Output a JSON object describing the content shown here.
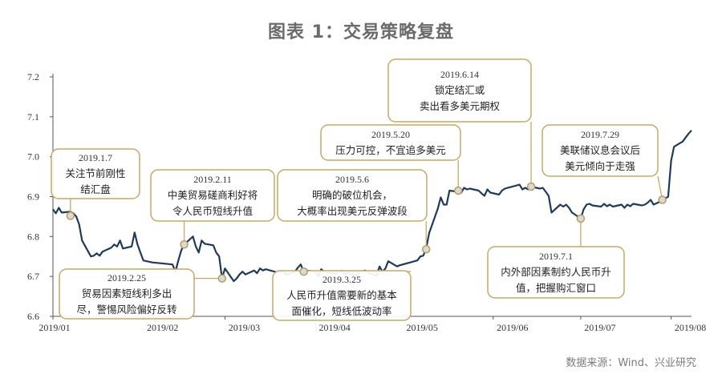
{
  "title": "图表 1：交易策略复盘",
  "source": "数据来源：Wind、兴业研究",
  "colors": {
    "line": "#1f3b5a",
    "box_border": "#c9a865",
    "marker_fill": "#d9d9d9",
    "marker_stroke": "#b89a5a"
  },
  "chart_data": {
    "type": "line",
    "title": "图表 1：交易策略复盘",
    "xlabel": "",
    "ylabel": "",
    "ylim": [
      6.6,
      7.2
    ],
    "y_ticks": [
      "6.6",
      "6.7",
      "6.8",
      "6.9",
      "7.0",
      "7.1",
      "7.2"
    ],
    "x_ticks": [
      "2019/01",
      "2019/02",
      "2019/03",
      "2019/04",
      "2019/05",
      "2019/06",
      "2019/07",
      "2019/08"
    ],
    "xlim": [
      "2019-01-01",
      "2019-08-08"
    ],
    "series": [
      {
        "x": [
          "2019-01-01",
          "2019-01-02",
          "2019-01-03",
          "2019-01-04",
          "2019-01-07",
          "2019-01-08",
          "2019-01-09",
          "2019-01-10",
          "2019-01-11",
          "2019-01-14",
          "2019-01-15",
          "2019-01-16",
          "2019-01-17",
          "2019-01-18",
          "2019-01-21",
          "2019-01-22",
          "2019-01-23",
          "2019-01-24",
          "2019-01-25",
          "2019-01-28",
          "2019-01-29",
          "2019-01-30",
          "2019-01-31",
          "2019-02-01",
          "2019-02-04",
          "2019-02-11",
          "2019-02-12",
          "2019-02-13",
          "2019-02-14",
          "2019-02-15",
          "2019-02-18",
          "2019-02-19",
          "2019-02-20",
          "2019-02-21",
          "2019-02-22",
          "2019-02-25",
          "2019-02-26",
          "2019-02-27",
          "2019-02-28",
          "2019-03-01",
          "2019-03-04",
          "2019-03-05",
          "2019-03-06",
          "2019-03-07",
          "2019-03-08",
          "2019-03-11",
          "2019-03-12",
          "2019-03-13",
          "2019-03-14",
          "2019-03-15",
          "2019-03-18",
          "2019-03-19",
          "2019-03-20",
          "2019-03-21",
          "2019-03-22",
          "2019-03-25",
          "2019-03-26",
          "2019-03-27",
          "2019-03-28",
          "2019-03-29",
          "2019-04-01",
          "2019-04-02",
          "2019-04-03",
          "2019-04-04",
          "2019-04-08",
          "2019-04-09",
          "2019-04-10",
          "2019-04-11",
          "2019-04-12",
          "2019-04-15",
          "2019-04-16",
          "2019-04-17",
          "2019-04-18",
          "2019-04-19",
          "2019-04-22",
          "2019-04-23",
          "2019-04-24",
          "2019-04-25",
          "2019-04-26",
          "2019-04-29",
          "2019-04-30",
          "2019-05-06",
          "2019-05-07",
          "2019-05-08",
          "2019-05-09",
          "2019-05-10",
          "2019-05-13",
          "2019-05-14",
          "2019-05-15",
          "2019-05-16",
          "2019-05-17",
          "2019-05-20",
          "2019-05-21",
          "2019-05-22",
          "2019-05-23",
          "2019-05-24",
          "2019-05-27",
          "2019-05-28",
          "2019-05-29",
          "2019-05-30",
          "2019-05-31",
          "2019-06-03",
          "2019-06-04",
          "2019-06-05",
          "2019-06-06",
          "2019-06-10",
          "2019-06-11",
          "2019-06-12",
          "2019-06-13",
          "2019-06-14",
          "2019-06-17",
          "2019-06-18",
          "2019-06-19",
          "2019-06-20",
          "2019-06-21",
          "2019-06-24",
          "2019-06-25",
          "2019-06-26",
          "2019-06-27",
          "2019-06-28",
          "2019-07-01",
          "2019-07-02",
          "2019-07-03",
          "2019-07-04",
          "2019-07-05",
          "2019-07-08",
          "2019-07-09",
          "2019-07-10",
          "2019-07-11",
          "2019-07-12",
          "2019-07-15",
          "2019-07-16",
          "2019-07-17",
          "2019-07-18",
          "2019-07-19",
          "2019-07-22",
          "2019-07-23",
          "2019-07-24",
          "2019-07-25",
          "2019-07-26",
          "2019-07-29",
          "2019-07-30",
          "2019-07-31",
          "2019-08-01",
          "2019-08-02",
          "2019-08-05",
          "2019-08-06",
          "2019-08-07",
          "2019-08-08"
        ],
        "values": [
          6.868,
          6.858,
          6.872,
          6.86,
          6.862,
          6.858,
          6.85,
          6.83,
          6.79,
          6.75,
          6.752,
          6.758,
          6.752,
          6.762,
          6.772,
          6.78,
          6.775,
          6.79,
          6.77,
          6.775,
          6.81,
          6.78,
          6.76,
          6.74,
          6.735,
          6.73,
          6.712,
          6.74,
          6.765,
          6.78,
          6.8,
          6.775,
          6.76,
          6.79,
          6.782,
          6.778,
          6.76,
          6.75,
          6.695,
          6.72,
          6.688,
          6.695,
          6.705,
          6.712,
          6.705,
          6.715,
          6.708,
          6.72,
          6.715,
          6.718,
          6.712,
          6.71,
          6.712,
          6.713,
          6.705,
          6.712,
          6.722,
          6.73,
          6.712,
          6.715,
          6.712,
          6.7,
          6.718,
          6.712,
          6.706,
          6.712,
          6.714,
          6.706,
          6.709,
          6.702,
          6.712,
          6.712,
          6.715,
          6.71,
          6.702,
          6.725,
          6.712,
          6.72,
          6.738,
          6.725,
          6.728,
          6.74,
          6.75,
          6.752,
          6.77,
          6.808,
          6.87,
          6.898,
          6.88,
          6.88,
          6.915,
          6.912,
          6.91,
          6.922,
          6.918,
          6.92,
          6.915,
          6.908,
          6.902,
          6.918,
          6.91,
          6.905,
          6.915,
          6.92,
          6.922,
          6.93,
          6.918,
          6.922,
          6.918,
          6.925,
          6.92,
          6.922,
          6.912,
          6.902,
          6.86,
          6.88,
          6.875,
          6.88,
          6.872,
          6.86,
          6.845,
          6.868,
          6.88,
          6.882,
          6.878,
          6.875,
          6.882,
          6.876,
          6.88,
          6.875,
          6.88,
          6.872,
          6.88,
          6.876,
          6.882,
          6.878,
          6.88,
          6.885,
          6.892,
          6.88,
          6.89,
          6.895,
          6.9,
          6.99,
          7.025,
          7.038,
          7.048,
          7.058,
          7.066
        ]
      }
    ],
    "annotations": [
      {
        "date": "2019.1.7",
        "lines": [
          "关注节前刚性",
          "结汇盘"
        ],
        "x": "2019-01-07",
        "y": 6.852
      },
      {
        "date": "2019.2.11",
        "lines": [
          "中美贸易磋商利好将",
          "令人民币短线升值"
        ],
        "x": "2019-02-15",
        "y": 6.78
      },
      {
        "date": "2019.2.25",
        "lines": [
          "贸易因素短线利多出",
          "尽，警惕风险偏好反转"
        ],
        "x": "2019-02-28",
        "y": 6.695
      },
      {
        "date": "2019.3.25",
        "lines": [
          "人民币升值需要新的基本",
          "面催化，短线低波动率"
        ],
        "x": "2019-03-28",
        "y": 6.712
      },
      {
        "date": "2019.5.6",
        "lines": [
          "明确的破位机会，",
          "大概率出现美元反弹波段"
        ],
        "x": "2019-05-09",
        "y": 6.768
      },
      {
        "date": "2019.5.20",
        "lines": [
          "压力可控，不宜追多美元"
        ],
        "x": "2019-05-20",
        "y": 6.915
      },
      {
        "date": "2019.6.14",
        "lines": [
          "锁定结汇或",
          "卖出看多美元期权"
        ],
        "x": "2019-06-14",
        "y": 6.925
      },
      {
        "date": "2019.7.1",
        "lines": [
          "内外部因素制约人民币升",
          "值，把握购汇窗口"
        ],
        "x": "2019-07-01",
        "y": 6.845
      },
      {
        "date": "2019.7.29",
        "lines": [
          "美联储议息会议后",
          "美元倾向于走强"
        ],
        "x": "2019-07-29",
        "y": 6.892
      }
    ]
  }
}
